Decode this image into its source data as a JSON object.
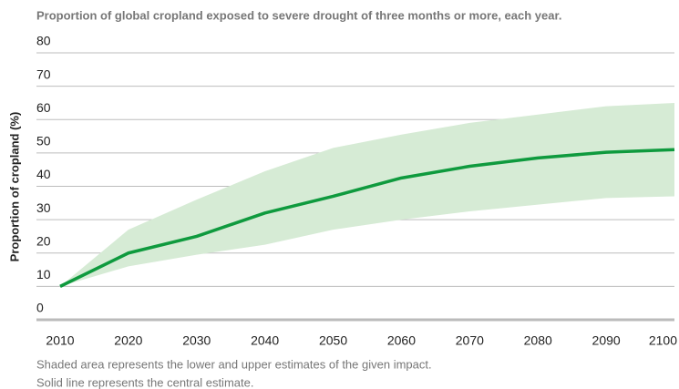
{
  "chart_data": {
    "type": "line",
    "title": "Proportion of global cropland exposed to severe drought of three months or more, each year.",
    "ylabel": "Proportion of cropland (%)",
    "notes": [
      "Shaded area represents the lower and upper estimates of the given impact.",
      "Solid line represents the central estimate."
    ],
    "x": [
      2010,
      2020,
      2030,
      2040,
      2050,
      2060,
      2070,
      2080,
      2090,
      2100
    ],
    "values": [
      10,
      20,
      25,
      32,
      37,
      42.5,
      46,
      48.5,
      50.2,
      51
    ],
    "upper": [
      10,
      27,
      36,
      44.5,
      51.5,
      55.5,
      59,
      61.5,
      64,
      65
    ],
    "lower": [
      10,
      16,
      19.5,
      22.5,
      27,
      30,
      32.5,
      34.5,
      36.5,
      37
    ],
    "color": "#0f9a3e",
    "band_color": "#d6ebd5",
    "xlim": [
      2010,
      2100
    ],
    "xticks": [
      2010,
      2020,
      2030,
      2040,
      2050,
      2060,
      2070,
      2080,
      2090,
      2100
    ],
    "ylim": [
      0,
      80
    ],
    "yticks": [
      0,
      10,
      20,
      30,
      40,
      50,
      60,
      70,
      80
    ],
    "grid": true
  }
}
